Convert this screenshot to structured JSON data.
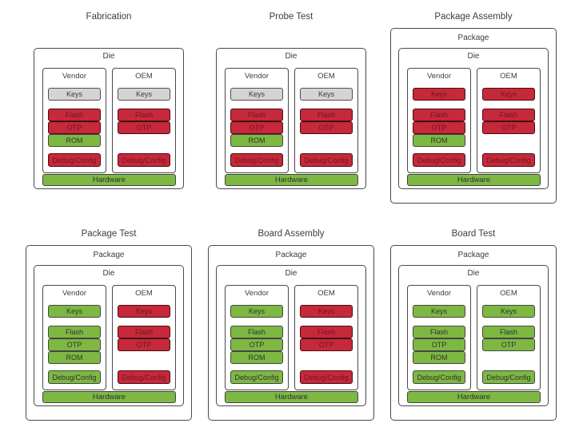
{
  "labels": {
    "package": "Package",
    "die": "Die",
    "vendor": "Vendor",
    "oem": "OEM",
    "hardware": "Hardware"
  },
  "block_labels": {
    "keys": "Keys",
    "flash": "Flash",
    "otp": "OTP",
    "rom": "ROM",
    "debug": "Debug/Config"
  },
  "colors": {
    "red": "#c5293a",
    "green": "#7db843",
    "gray": "#d4d4d4"
  },
  "stages": [
    {
      "title": "Fabrication",
      "has_package": false,
      "vendor": {
        "keys": "gray",
        "flash": "red",
        "otp": "red",
        "rom": "green",
        "debug": "red"
      },
      "oem": {
        "keys": "gray",
        "flash": "red",
        "otp": "red",
        "rom": null,
        "debug": "red"
      },
      "hardware": "green"
    },
    {
      "title": "Probe Test",
      "has_package": false,
      "vendor": {
        "keys": "gray",
        "flash": "red",
        "otp": "red",
        "rom": "green",
        "debug": "red"
      },
      "oem": {
        "keys": "gray",
        "flash": "red",
        "otp": "red",
        "rom": null,
        "debug": "red"
      },
      "hardware": "green"
    },
    {
      "title": "Package Assembly",
      "has_package": true,
      "vendor": {
        "keys": "red",
        "flash": "red",
        "otp": "red",
        "rom": "green",
        "debug": "red"
      },
      "oem": {
        "keys": "red",
        "flash": "red",
        "otp": "red",
        "rom": null,
        "debug": "red"
      },
      "hardware": "green"
    },
    {
      "title": "Package Test",
      "has_package": true,
      "vendor": {
        "keys": "green",
        "flash": "green",
        "otp": "green",
        "rom": "green",
        "debug": "green"
      },
      "oem": {
        "keys": "red",
        "flash": "red",
        "otp": "red",
        "rom": null,
        "debug": "red"
      },
      "hardware": "green"
    },
    {
      "title": "Board Assembly",
      "has_package": true,
      "vendor": {
        "keys": "green",
        "flash": "green",
        "otp": "green",
        "rom": "green",
        "debug": "green"
      },
      "oem": {
        "keys": "red",
        "flash": "red",
        "otp": "red",
        "rom": null,
        "debug": "red"
      },
      "hardware": "green"
    },
    {
      "title": "Board Test",
      "has_package": true,
      "vendor": {
        "keys": "green",
        "flash": "green",
        "otp": "green",
        "rom": "green",
        "debug": "green"
      },
      "oem": {
        "keys": "green",
        "flash": "green",
        "otp": "green",
        "rom": null,
        "debug": "green"
      },
      "hardware": "green"
    }
  ]
}
